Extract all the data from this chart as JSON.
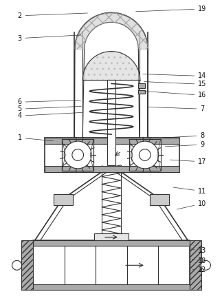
{
  "bg_color": "#ffffff",
  "line_color": "#333333",
  "gray_fill": "#aaaaaa",
  "mid_gray": "#cccccc",
  "light_gray": "#e5e5e5",
  "label_color": "#111111",
  "fig_w": 3.23,
  "fig_h": 4.43,
  "dpi": 100
}
